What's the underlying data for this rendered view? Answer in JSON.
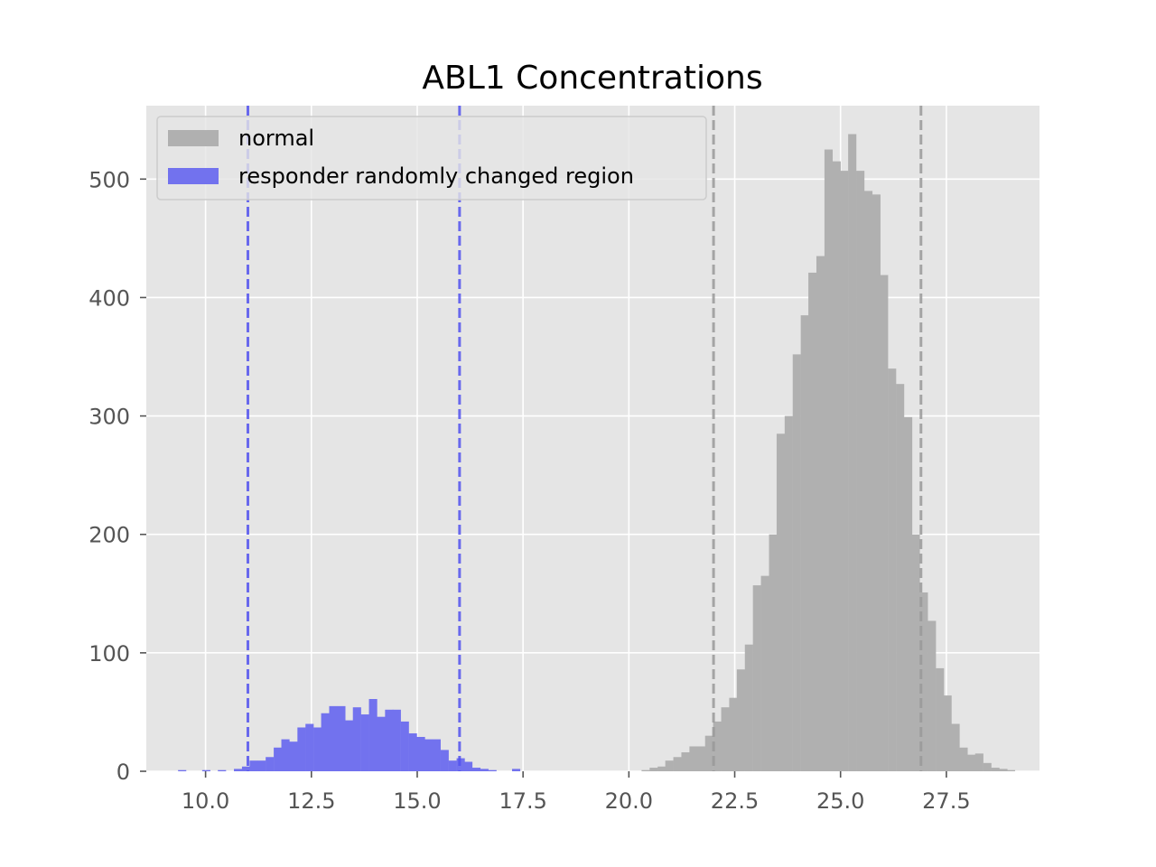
{
  "chart_data": {
    "type": "bar",
    "title": "ABL1 Concentrations",
    "xlabel": "",
    "ylabel": "",
    "xlim": [
      8.6,
      29.7
    ],
    "ylim": [
      0,
      562
    ],
    "grid": true,
    "legend_position": "top-left",
    "x_ticks": [
      "10.0",
      "12.5",
      "15.0",
      "17.5",
      "20.0",
      "22.5",
      "25.0",
      "27.5"
    ],
    "y_ticks": [
      "0",
      "100",
      "200",
      "300",
      "400",
      "500"
    ],
    "bin_width": 0.188,
    "series": [
      {
        "name": "normal",
        "color": "#b0b0b0",
        "bins": [
          [
            20.3,
            1
          ],
          [
            20.49,
            3
          ],
          [
            20.68,
            4
          ],
          [
            20.86,
            9
          ],
          [
            21.05,
            12
          ],
          [
            21.24,
            16
          ],
          [
            21.43,
            21
          ],
          [
            21.62,
            21
          ],
          [
            21.8,
            30
          ],
          [
            21.99,
            42
          ],
          [
            22.18,
            54
          ],
          [
            22.37,
            62
          ],
          [
            22.55,
            86
          ],
          [
            22.74,
            107
          ],
          [
            22.93,
            157
          ],
          [
            23.12,
            165
          ],
          [
            23.31,
            200
          ],
          [
            23.49,
            285
          ],
          [
            23.68,
            300
          ],
          [
            23.87,
            352
          ],
          [
            24.06,
            385
          ],
          [
            24.24,
            421
          ],
          [
            24.43,
            435
          ],
          [
            24.62,
            525
          ],
          [
            24.81,
            515
          ],
          [
            24.99,
            507
          ],
          [
            25.18,
            538
          ],
          [
            25.37,
            507
          ],
          [
            25.56,
            490
          ],
          [
            25.75,
            487
          ],
          [
            25.93,
            419
          ],
          [
            26.12,
            340
          ],
          [
            26.31,
            327
          ],
          [
            26.5,
            299
          ],
          [
            26.68,
            200
          ],
          [
            26.87,
            151
          ],
          [
            27.06,
            127
          ],
          [
            27.25,
            87
          ],
          [
            27.43,
            64
          ],
          [
            27.62,
            40
          ],
          [
            27.81,
            20
          ],
          [
            28.0,
            14
          ],
          [
            28.18,
            15
          ],
          [
            28.37,
            7
          ],
          [
            28.56,
            3
          ],
          [
            28.75,
            2
          ],
          [
            28.93,
            1
          ]
        ]
      },
      {
        "name": "responder randomly changed region",
        "color": "#7272ee",
        "bins": [
          [
            9.35,
            1
          ],
          [
            9.54,
            0
          ],
          [
            9.73,
            0
          ],
          [
            9.92,
            1
          ],
          [
            10.1,
            0
          ],
          [
            10.29,
            1
          ],
          [
            10.48,
            0
          ],
          [
            10.67,
            2
          ],
          [
            10.86,
            4
          ],
          [
            11.04,
            9
          ],
          [
            11.23,
            9
          ],
          [
            11.42,
            12
          ],
          [
            11.61,
            20
          ],
          [
            11.79,
            27
          ],
          [
            11.98,
            25
          ],
          [
            12.17,
            37
          ],
          [
            12.36,
            40
          ],
          [
            12.55,
            37
          ],
          [
            12.73,
            49
          ],
          [
            12.92,
            55
          ],
          [
            13.11,
            55
          ],
          [
            13.3,
            43
          ],
          [
            13.48,
            54
          ],
          [
            13.67,
            48
          ],
          [
            13.86,
            61
          ],
          [
            14.05,
            46
          ],
          [
            14.24,
            52
          ],
          [
            14.42,
            52
          ],
          [
            14.61,
            42
          ],
          [
            14.8,
            32
          ],
          [
            14.99,
            29
          ],
          [
            15.17,
            27
          ],
          [
            15.36,
            27
          ],
          [
            15.55,
            18
          ],
          [
            15.74,
            9
          ],
          [
            15.93,
            11
          ],
          [
            16.11,
            8
          ],
          [
            16.3,
            3
          ],
          [
            16.49,
            2
          ],
          [
            16.68,
            1
          ],
          [
            16.86,
            0
          ],
          [
            17.05,
            0
          ],
          [
            17.24,
            2
          ]
        ]
      }
    ],
    "vlines": [
      {
        "x": 11.0,
        "color": "#5252ee",
        "style": "dashed"
      },
      {
        "x": 16.0,
        "color": "#5252ee",
        "style": "dashed"
      },
      {
        "x": 22.0,
        "color": "#999999",
        "style": "dashed"
      },
      {
        "x": 26.9,
        "color": "#999999",
        "style": "dashed"
      }
    ]
  }
}
